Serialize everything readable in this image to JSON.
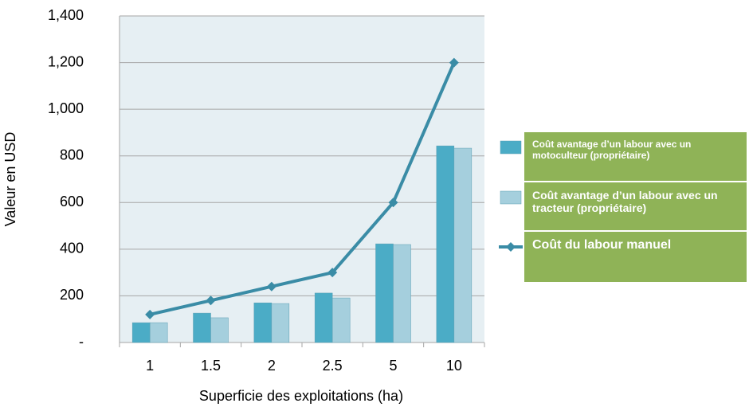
{
  "chart_data": {
    "type": "bar_line",
    "x_label": "Superficie des exploitations (ha)",
    "y_label": "Valeur en USD",
    "categories": [
      "1",
      "1.5",
      "2",
      "2.5",
      "5",
      "10"
    ],
    "series": [
      {
        "name": "Coût avantage d’un labour avec un motoculteur (propriétaire)",
        "type": "bar",
        "color": "#4bacc6",
        "values": [
          85,
          126,
          170,
          212,
          423,
          843
        ]
      },
      {
        "name": "Coût avantage d’un labour avec un tracteur (propriétaire)",
        "type": "bar",
        "color": "#a5cfdd",
        "values": [
          85,
          106,
          167,
          191,
          420,
          833
        ]
      },
      {
        "name": "Coût du labour manuel",
        "type": "line",
        "color": "#3a8ca6",
        "values": [
          120,
          180,
          240,
          300,
          600,
          1200
        ]
      }
    ],
    "ylim": [
      0,
      1400
    ],
    "yticks": [
      {
        "value": 0,
        "label": "-"
      },
      200,
      400,
      600,
      800,
      {
        "value": 1000,
        "label": "1,000"
      },
      {
        "value": 1200,
        "label": "1,200"
      },
      {
        "value": 1400,
        "label": "1,400"
      }
    ],
    "grid": true
  }
}
